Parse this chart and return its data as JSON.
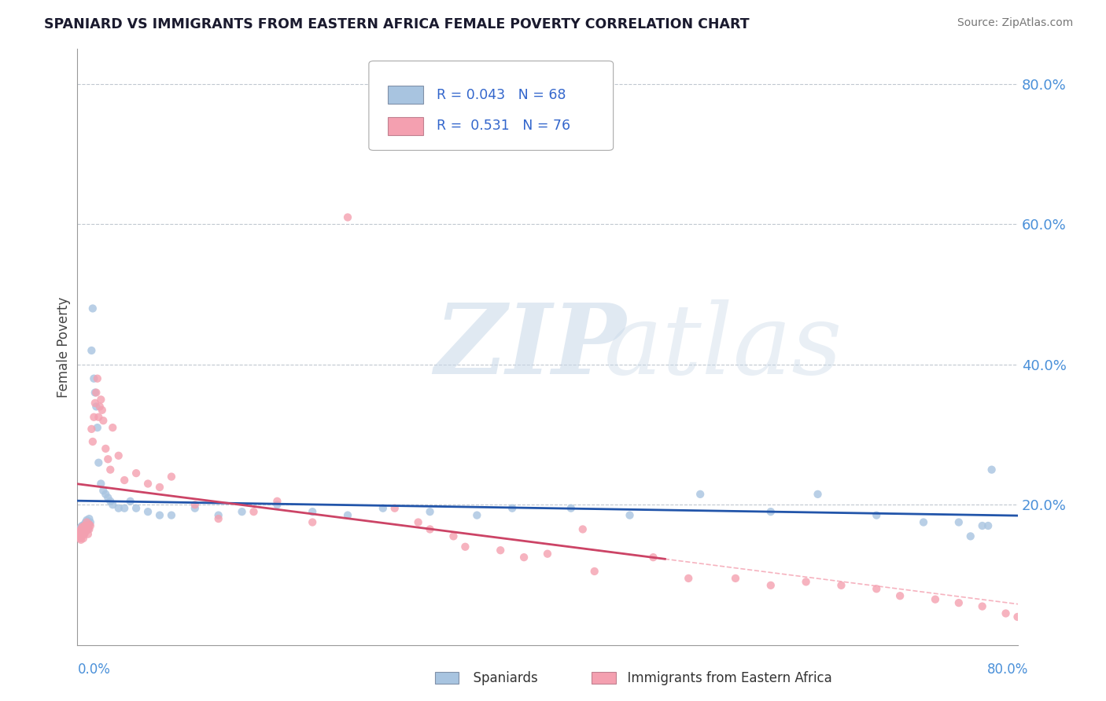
{
  "title": "SPANIARD VS IMMIGRANTS FROM EASTERN AFRICA FEMALE POVERTY CORRELATION CHART",
  "source": "Source: ZipAtlas.com",
  "ylabel": "Female Poverty",
  "ytick_labels": [
    "20.0%",
    "40.0%",
    "60.0%",
    "80.0%"
  ],
  "ytick_values": [
    0.2,
    0.4,
    0.6,
    0.8
  ],
  "xlim": [
    0.0,
    0.8
  ],
  "ylim": [
    0.0,
    0.85
  ],
  "spaniard_color": "#a8c4e0",
  "immigrant_color": "#f4a0b0",
  "spaniard_line_color": "#2255aa",
  "immigrant_line_color": "#cc4466",
  "spaniard_R": 0.043,
  "spaniard_N": 68,
  "immigrant_R": 0.531,
  "immigrant_N": 76,
  "legend_label_1": "Spaniards",
  "legend_label_2": "Immigrants from Eastern Africa",
  "watermark_zip": "ZIP",
  "watermark_atlas": "atlas",
  "spaniard_x": [
    0.001,
    0.001,
    0.002,
    0.002,
    0.002,
    0.003,
    0.003,
    0.003,
    0.004,
    0.004,
    0.004,
    0.005,
    0.005,
    0.005,
    0.006,
    0.006,
    0.006,
    0.007,
    0.007,
    0.008,
    0.008,
    0.009,
    0.009,
    0.01,
    0.01,
    0.011,
    0.012,
    0.013,
    0.014,
    0.015,
    0.016,
    0.017,
    0.018,
    0.02,
    0.022,
    0.024,
    0.026,
    0.028,
    0.03,
    0.035,
    0.04,
    0.045,
    0.05,
    0.06,
    0.07,
    0.08,
    0.1,
    0.12,
    0.14,
    0.17,
    0.2,
    0.23,
    0.26,
    0.3,
    0.34,
    0.37,
    0.42,
    0.47,
    0.53,
    0.59,
    0.63,
    0.68,
    0.72,
    0.75,
    0.76,
    0.77,
    0.775,
    0.778
  ],
  "spaniard_y": [
    0.155,
    0.16,
    0.158,
    0.162,
    0.165,
    0.155,
    0.16,
    0.168,
    0.162,
    0.165,
    0.17,
    0.158,
    0.163,
    0.17,
    0.16,
    0.165,
    0.172,
    0.168,
    0.175,
    0.17,
    0.178,
    0.165,
    0.175,
    0.172,
    0.18,
    0.175,
    0.42,
    0.48,
    0.38,
    0.36,
    0.34,
    0.31,
    0.26,
    0.23,
    0.22,
    0.215,
    0.21,
    0.205,
    0.2,
    0.195,
    0.195,
    0.205,
    0.195,
    0.19,
    0.185,
    0.185,
    0.195,
    0.185,
    0.19,
    0.2,
    0.19,
    0.185,
    0.195,
    0.19,
    0.185,
    0.195,
    0.195,
    0.185,
    0.215,
    0.19,
    0.215,
    0.185,
    0.175,
    0.175,
    0.155,
    0.17,
    0.17,
    0.25
  ],
  "immigrant_x": [
    0.001,
    0.001,
    0.002,
    0.002,
    0.002,
    0.003,
    0.003,
    0.003,
    0.004,
    0.004,
    0.004,
    0.005,
    0.005,
    0.005,
    0.006,
    0.006,
    0.006,
    0.007,
    0.007,
    0.008,
    0.008,
    0.009,
    0.009,
    0.01,
    0.01,
    0.011,
    0.012,
    0.013,
    0.014,
    0.015,
    0.016,
    0.017,
    0.018,
    0.019,
    0.02,
    0.021,
    0.022,
    0.024,
    0.026,
    0.028,
    0.03,
    0.035,
    0.04,
    0.05,
    0.06,
    0.07,
    0.08,
    0.1,
    0.12,
    0.15,
    0.17,
    0.2,
    0.23,
    0.27,
    0.3,
    0.33,
    0.36,
    0.4,
    0.44,
    0.38,
    0.32,
    0.29,
    0.43,
    0.49,
    0.52,
    0.56,
    0.59,
    0.62,
    0.65,
    0.68,
    0.7,
    0.73,
    0.75,
    0.77,
    0.79,
    0.8
  ],
  "immigrant_y": [
    0.155,
    0.158,
    0.152,
    0.158,
    0.162,
    0.15,
    0.155,
    0.165,
    0.155,
    0.16,
    0.168,
    0.152,
    0.158,
    0.165,
    0.158,
    0.162,
    0.17,
    0.162,
    0.17,
    0.165,
    0.175,
    0.158,
    0.168,
    0.165,
    0.172,
    0.17,
    0.308,
    0.29,
    0.325,
    0.345,
    0.36,
    0.38,
    0.325,
    0.34,
    0.35,
    0.335,
    0.32,
    0.28,
    0.265,
    0.25,
    0.31,
    0.27,
    0.235,
    0.245,
    0.23,
    0.225,
    0.24,
    0.2,
    0.18,
    0.19,
    0.205,
    0.175,
    0.61,
    0.195,
    0.165,
    0.14,
    0.135,
    0.13,
    0.105,
    0.125,
    0.155,
    0.175,
    0.165,
    0.125,
    0.095,
    0.095,
    0.085,
    0.09,
    0.085,
    0.08,
    0.07,
    0.065,
    0.06,
    0.055,
    0.045,
    0.04
  ]
}
